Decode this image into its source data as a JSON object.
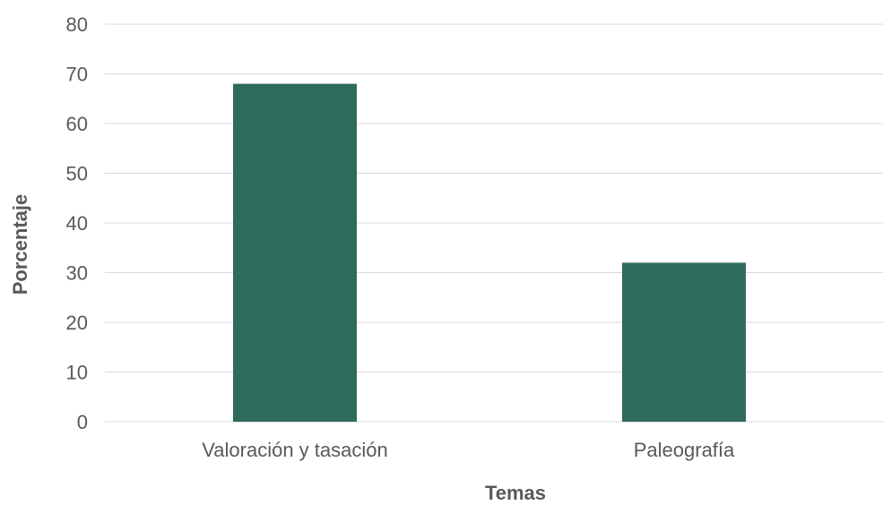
{
  "chart_data": {
    "type": "bar",
    "title": "",
    "xlabel": "Temas",
    "ylabel": "Porcentaje",
    "categories": [
      "Valoración y tasación",
      "Paleografía"
    ],
    "values": [
      68,
      32
    ],
    "ylim": [
      0,
      80
    ],
    "yticks": [
      "0",
      "10",
      "20",
      "30",
      "40",
      "50",
      "60",
      "70",
      "80"
    ],
    "grid": true,
    "legend": "none",
    "bar_color": "#2e6b5c"
  }
}
